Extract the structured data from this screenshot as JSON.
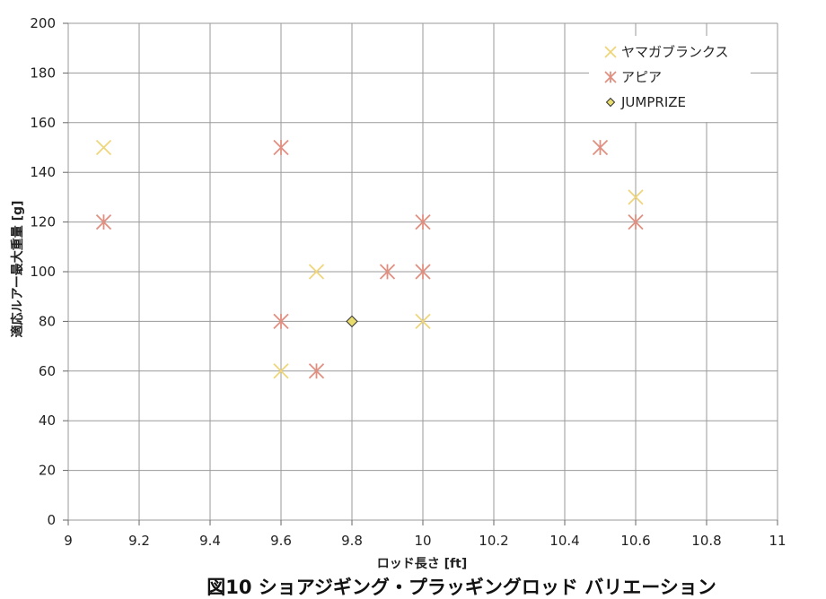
{
  "chart_data": {
    "type": "scatter",
    "title": "",
    "caption": "図10 ショアジギング・プラッギングロッド バリエーション",
    "xlabel": "ロッド長さ [ft]",
    "ylabel": "適応ルアー最大重量 [g]",
    "xlim": [
      9,
      11
    ],
    "ylim": [
      0,
      200
    ],
    "x_ticks": [
      "9",
      "9.2",
      "9.4",
      "9.6",
      "9.8",
      "10",
      "10.2",
      "10.4",
      "10.6",
      "10.8",
      "11"
    ],
    "y_ticks": [
      "0",
      "20",
      "40",
      "60",
      "80",
      "100",
      "120",
      "140",
      "160",
      "180",
      "200"
    ],
    "grid": true,
    "legend_position": "top-right",
    "series": [
      {
        "name": "ヤマガブランクス",
        "marker": "x",
        "color": "#EFD57A",
        "points": [
          {
            "x": 9.1,
            "y": 150
          },
          {
            "x": 9.6,
            "y": 60
          },
          {
            "x": 9.7,
            "y": 100
          },
          {
            "x": 10.0,
            "y": 80
          },
          {
            "x": 10.6,
            "y": 130
          }
        ]
      },
      {
        "name": "アピア",
        "marker": "asterisk",
        "color": "#E08F80",
        "points": [
          {
            "x": 9.1,
            "y": 120
          },
          {
            "x": 9.6,
            "y": 150
          },
          {
            "x": 9.6,
            "y": 80
          },
          {
            "x": 9.7,
            "y": 60
          },
          {
            "x": 9.9,
            "y": 100
          },
          {
            "x": 10.0,
            "y": 120
          },
          {
            "x": 10.0,
            "y": 100
          },
          {
            "x": 10.5,
            "y": 150
          },
          {
            "x": 10.6,
            "y": 120
          }
        ]
      },
      {
        "name": "JUMPRIZE",
        "marker": "diamond",
        "color": "#E8DC6E",
        "points": [
          {
            "x": 9.8,
            "y": 80
          }
        ]
      }
    ]
  }
}
